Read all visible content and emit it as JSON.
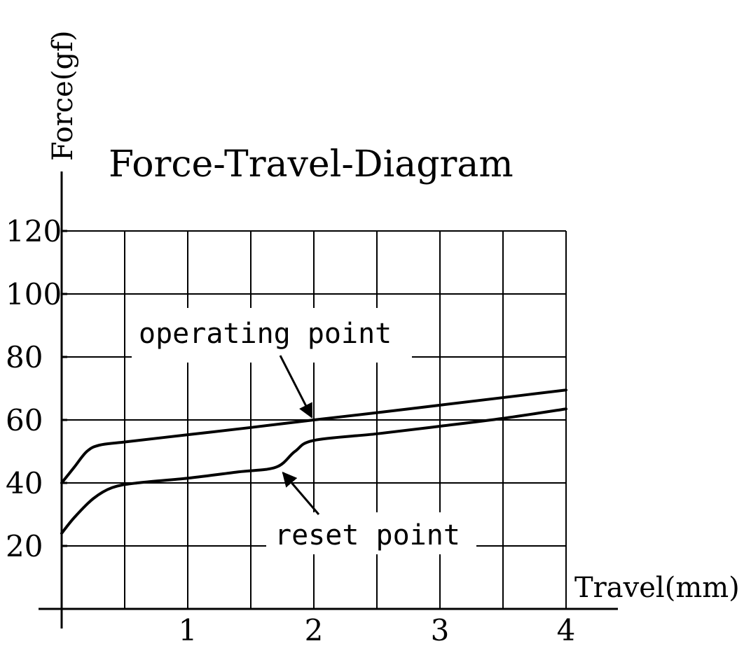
{
  "chart_data": {
    "type": "line",
    "title": "Force-Travel-Diagram",
    "xlabel": "Travel(mm)",
    "ylabel": "Force(gf)",
    "xlim": [
      0,
      4
    ],
    "ylim": [
      0,
      120
    ],
    "x_ticks": [
      {
        "value": 1,
        "label": "1"
      },
      {
        "value": 2,
        "label": "2"
      },
      {
        "value": 3,
        "label": "3"
      },
      {
        "value": 4,
        "label": "4"
      }
    ],
    "y_ticks": [
      {
        "value": 20,
        "label": "20"
      },
      {
        "value": 40,
        "label": "40"
      },
      {
        "value": 60,
        "label": "60"
      },
      {
        "value": 80,
        "label": "80"
      },
      {
        "value": 100,
        "label": "100"
      },
      {
        "value": 120,
        "label": "120"
      }
    ],
    "grid": true,
    "series": [
      {
        "x": [
          0,
          0.1,
          0.2,
          0.3,
          0.5,
          1.0,
          1.5,
          2.0,
          2.5,
          3.0,
          3.5,
          4.0
        ],
        "y": [
          40,
          45,
          50,
          52,
          53,
          55.3,
          57.6,
          60,
          62.3,
          64.7,
          67.1,
          69.5
        ]
      },
      {
        "x": [
          0,
          0.1,
          0.25,
          0.4,
          0.6,
          1.0,
          1.4,
          1.7,
          1.85,
          2.0,
          2.5,
          3.0,
          3.5,
          4.0
        ],
        "y": [
          24,
          29,
          35,
          38.5,
          40,
          41.5,
          43.5,
          45,
          50,
          53.5,
          55.6,
          58,
          60.5,
          63.5
        ]
      }
    ],
    "annotations": [
      {
        "text": "operating point",
        "x": 2.0,
        "y": 60
      },
      {
        "text": "reset point",
        "x": 1.7,
        "y": 45
      }
    ]
  }
}
